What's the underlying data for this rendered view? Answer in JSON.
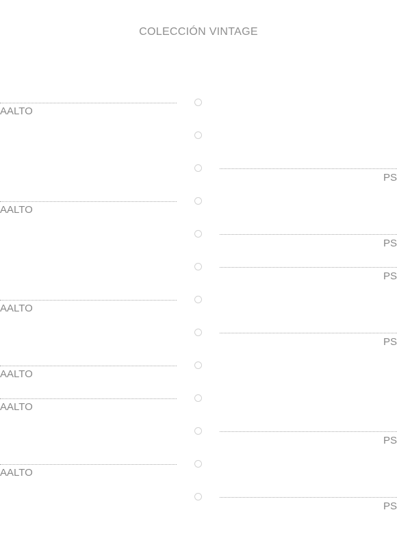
{
  "title": "COLECCIÓN VINTAGE",
  "entries": [
    {
      "side": "left",
      "label": "AALTO"
    },
    {
      "side": "none",
      "label": ""
    },
    {
      "side": "right",
      "label": "PS"
    },
    {
      "side": "left",
      "label": "AALTO"
    },
    {
      "side": "right",
      "label": "PS"
    },
    {
      "side": "right",
      "label": "PS"
    },
    {
      "side": "left",
      "label": "AALTO"
    },
    {
      "side": "right",
      "label": "PS"
    },
    {
      "side": "left",
      "label": "AALTO"
    },
    {
      "side": "left",
      "label": "AALTO"
    },
    {
      "side": "right",
      "label": "PS"
    },
    {
      "side": "left",
      "label": "AALTO"
    },
    {
      "side": "right",
      "label": "PS"
    }
  ]
}
